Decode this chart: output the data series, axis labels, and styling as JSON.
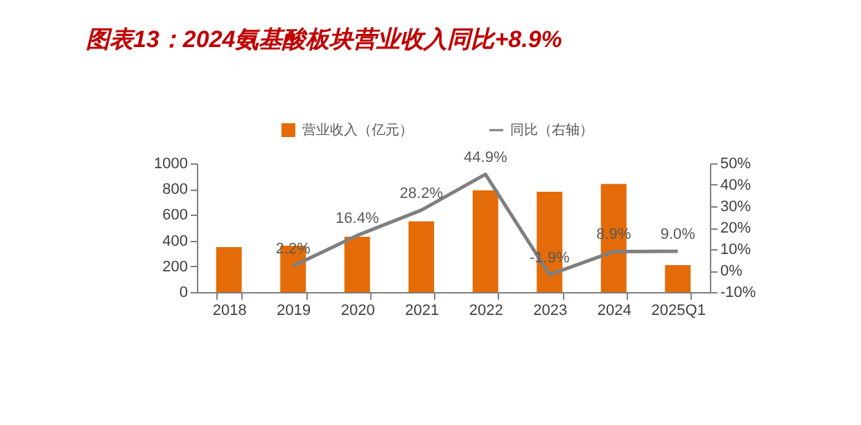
{
  "chart_data": {
    "type": "bar",
    "title": "图表13：2024氨基酸板块营业收入同比+8.9%",
    "categories": [
      "2018",
      "2019",
      "2020",
      "2021",
      "2022",
      "2023",
      "2024",
      "2025Q1"
    ],
    "series": [
      {
        "name": "营业收入（亿元）",
        "color": "#e36c09",
        "values": [
          350,
          360,
          430,
          550,
          790,
          780,
          840,
          210
        ]
      },
      {
        "name": "同比（右轴）",
        "type": "line",
        "axis": "y2",
        "color": "#7f7f7f",
        "values": [
          null,
          2.2,
          16.4,
          28.2,
          44.9,
          -1.9,
          8.9,
          9.0
        ],
        "value_labels": [
          null,
          "2.2%",
          "16.4%",
          "28.2%",
          "44.9%",
          "-1.9%",
          "8.9%",
          "9.0%"
        ]
      }
    ],
    "ylim": [
      0,
      1000
    ],
    "yticks": [
      0,
      200,
      400,
      600,
      800,
      1000
    ],
    "y2lim": [
      -10,
      50
    ],
    "y2ticks": [
      {
        "value": -10,
        "label": "-10%"
      },
      {
        "value": 0,
        "label": "0%"
      },
      {
        "value": 10,
        "label": "10%"
      },
      {
        "value": 20,
        "label": "20%"
      },
      {
        "value": 30,
        "label": "30%"
      },
      {
        "value": 40,
        "label": "40%"
      },
      {
        "value": 50,
        "label": "50%"
      }
    ],
    "legend": "top",
    "grid": false,
    "marker": "none"
  }
}
